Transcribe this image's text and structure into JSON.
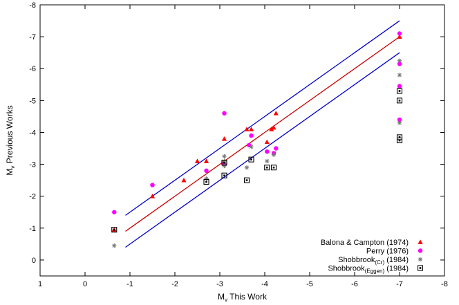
{
  "chart_data": {
    "type": "scatter",
    "title": "",
    "xlabel": {
      "main": "M",
      "sub": "v",
      "rest": " This Work"
    },
    "ylabel": {
      "main": "M",
      "sub": "v",
      "rest": " Previous Works"
    },
    "xlim": [
      1,
      -8
    ],
    "ylim": [
      0.5,
      -8
    ],
    "xticks": [
      1,
      0,
      -1,
      -2,
      -3,
      -4,
      -5,
      -6,
      -7,
      -8
    ],
    "yticks": [
      0,
      -1,
      -2,
      -3,
      -4,
      -5,
      -6,
      -7,
      -8
    ],
    "legend_position": "bottom-right",
    "lines": [
      {
        "role": "one-to-one",
        "color": "#cc0000",
        "from": [
          -0.9,
          -0.9
        ],
        "to": [
          -7.0,
          -7.0
        ]
      },
      {
        "role": "upper-envelope",
        "color": "#0000cc",
        "from": [
          -0.9,
          -1.4
        ],
        "to": [
          -7.0,
          -7.5
        ]
      },
      {
        "role": "lower-envelope",
        "color": "#0000cc",
        "from": [
          -0.9,
          -0.4
        ],
        "to": [
          -7.0,
          -6.5
        ]
      }
    ],
    "series": [
      {
        "name": "Balona & Campton (1974)",
        "marker": "triangle",
        "color": "#ff0000",
        "points": [
          [
            -0.65,
            -0.95
          ],
          [
            -1.5,
            -2.0
          ],
          [
            -2.2,
            -2.5
          ],
          [
            -2.5,
            -3.1
          ],
          [
            -2.7,
            -3.1
          ],
          [
            -3.1,
            -3.8
          ],
          [
            -3.1,
            -3.05
          ],
          [
            -3.6,
            -4.1
          ],
          [
            -3.7,
            -4.1
          ],
          [
            -4.05,
            -3.7
          ],
          [
            -4.15,
            -4.1
          ],
          [
            -4.2,
            -4.15
          ],
          [
            -4.25,
            -4.6
          ],
          [
            -7.0,
            -7.0
          ]
        ]
      },
      {
        "name": "Perry (1976)",
        "marker": "circle",
        "color": "#ff00ff",
        "points": [
          [
            -0.65,
            -1.5
          ],
          [
            -1.5,
            -2.35
          ],
          [
            -2.7,
            -2.8
          ],
          [
            -3.1,
            -4.6
          ],
          [
            -3.1,
            -3.0
          ],
          [
            -3.65,
            -3.6
          ],
          [
            -3.7,
            -3.9
          ],
          [
            -4.05,
            -3.4
          ],
          [
            -4.2,
            -3.35
          ],
          [
            -4.25,
            -3.5
          ],
          [
            -7.0,
            -7.1
          ],
          [
            -7.0,
            -6.15
          ],
          [
            -7.0,
            -5.45
          ],
          [
            -7.0,
            -4.4
          ]
        ]
      },
      {
        "name": "Shobbrook",
        "name_sub": "(Cr)",
        "name_rest": " (1984)",
        "marker": "star",
        "color": "#777777",
        "points": [
          [
            -0.65,
            -0.45
          ],
          [
            -2.7,
            -2.55
          ],
          [
            -3.1,
            -3.25
          ],
          [
            -3.1,
            -3.1
          ],
          [
            -3.1,
            -2.95
          ],
          [
            -3.6,
            -2.9
          ],
          [
            -3.7,
            -3.55
          ],
          [
            -4.05,
            -3.1
          ],
          [
            -4.2,
            -3.3
          ],
          [
            -7.0,
            -6.25
          ],
          [
            -7.0,
            -5.8
          ],
          [
            -7.0,
            -4.3
          ]
        ]
      },
      {
        "name": "Shobbrook",
        "name_sub": "(Eggen)",
        "name_rest": " (1984)",
        "marker": "boxed-square",
        "color": "#000000",
        "points": [
          [
            -0.65,
            -0.95
          ],
          [
            -2.7,
            -2.45
          ],
          [
            -3.1,
            -3.05
          ],
          [
            -3.1,
            -2.65
          ],
          [
            -3.6,
            -2.5
          ],
          [
            -3.7,
            -3.15
          ],
          [
            -4.05,
            -2.9
          ],
          [
            -4.2,
            -2.9
          ],
          [
            -7.0,
            -5.3
          ],
          [
            -7.0,
            -5.0
          ],
          [
            -7.0,
            -3.85
          ],
          [
            -7.0,
            -3.75
          ]
        ]
      }
    ]
  }
}
